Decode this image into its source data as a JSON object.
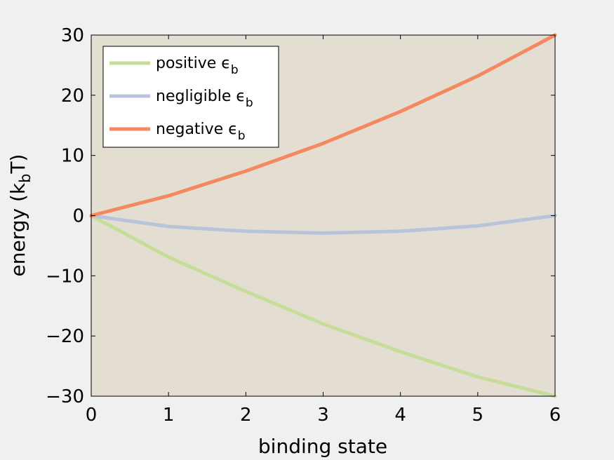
{
  "chart_data": {
    "type": "line",
    "title": "",
    "xlabel": "binding state",
    "ylabel": {
      "main": "energy (k",
      "sub": "b",
      "end": "T)"
    },
    "xlim": [
      0,
      6
    ],
    "ylim": [
      -30,
      30
    ],
    "x_ticks": [
      0,
      1,
      2,
      3,
      4,
      5,
      6
    ],
    "y_ticks": [
      -30,
      -20,
      -10,
      0,
      10,
      20,
      30
    ],
    "y_tick_labels": [
      "−30",
      "−20",
      "−10",
      "0",
      "10",
      "20",
      "30"
    ],
    "grid": false,
    "background_color": "#e4ded2",
    "legend_position": "top-left",
    "x": [
      0,
      1,
      2,
      3,
      4,
      5,
      6
    ],
    "series": [
      {
        "name": "positive ϵ",
        "name_sub": "b",
        "color": "#c6dd9a",
        "values": [
          0,
          -6.9,
          -12.6,
          -18.0,
          -22.6,
          -26.8,
          -30.0
        ]
      },
      {
        "name": "negligible ϵ",
        "name_sub": "b",
        "color": "#b9c4dc",
        "values": [
          0,
          -1.8,
          -2.6,
          -2.9,
          -2.6,
          -1.7,
          0
        ]
      },
      {
        "name": "negative ϵ",
        "name_sub": "b",
        "color": "#f48860",
        "values": [
          0,
          3.3,
          7.4,
          12.0,
          17.3,
          23.2,
          30.0
        ]
      }
    ]
  }
}
